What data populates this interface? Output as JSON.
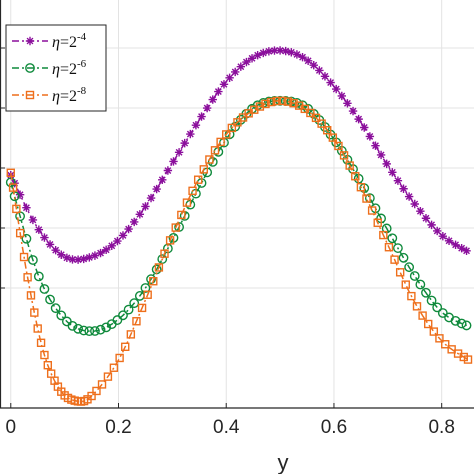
{
  "chart_data": {
    "type": "line",
    "title": "",
    "xlabel": "y",
    "ylabel": "",
    "xlim": [
      -0.02,
      0.86
    ],
    "ylim": [
      -0.5,
      1.2
    ],
    "grid": true,
    "legend_position": "top-left",
    "x_ticks": [
      {
        "value": 0.0,
        "label": "0"
      },
      {
        "value": 0.2,
        "label": "0.2"
      },
      {
        "value": 0.4,
        "label": "0.4"
      },
      {
        "value": 0.6,
        "label": "0.6"
      },
      {
        "value": 0.8,
        "label": "0.8"
      }
    ],
    "y_gridlines": [
      0.0,
      0.25,
      0.5,
      0.75,
      1.0
    ],
    "series": [
      {
        "legend_prefix": "η=2",
        "legend_exponent": "-4",
        "color": "#8b0f9c",
        "marker": "asterisk",
        "line_style": "dash-dot",
        "x": [
          0.0,
          0.05,
          0.1,
          0.15,
          0.2,
          0.25,
          0.3,
          0.35,
          0.4,
          0.45,
          0.5,
          0.55,
          0.6,
          0.65,
          0.7,
          0.75,
          0.8,
          0.85
        ],
        "values": [
          0.47,
          0.25,
          0.13,
          0.13,
          0.2,
          0.34,
          0.52,
          0.7,
          0.86,
          0.96,
          0.99,
          0.95,
          0.84,
          0.69,
          0.51,
          0.35,
          0.22,
          0.15
        ]
      },
      {
        "legend_prefix": "η=2",
        "legend_exponent": "-6",
        "color": "#0f8a3c",
        "marker": "circle",
        "line_style": "dash-dot",
        "x": [
          0.0,
          0.05,
          0.1,
          0.15,
          0.2,
          0.25,
          0.3,
          0.35,
          0.4,
          0.45,
          0.5,
          0.55,
          0.6,
          0.65,
          0.7,
          0.75,
          0.8,
          0.85
        ],
        "values": [
          0.44,
          0.06,
          -0.13,
          -0.18,
          -0.13,
          0.0,
          0.2,
          0.42,
          0.62,
          0.75,
          0.78,
          0.75,
          0.62,
          0.44,
          0.24,
          0.05,
          -0.1,
          -0.16
        ]
      },
      {
        "legend_prefix": "η=2",
        "legend_exponent": "-8",
        "color": "#ee6f1c",
        "marker": "square",
        "line_style": "dash-dot",
        "x": [
          0.0,
          0.03,
          0.06,
          0.09,
          0.12,
          0.15,
          0.2,
          0.25,
          0.3,
          0.35,
          0.4,
          0.45,
          0.5,
          0.55,
          0.6,
          0.65,
          0.7,
          0.75,
          0.8,
          0.85
        ],
        "values": [
          0.48,
          0.06,
          -0.26,
          -0.42,
          -0.47,
          -0.45,
          -0.3,
          -0.05,
          0.22,
          0.46,
          0.64,
          0.74,
          0.78,
          0.74,
          0.62,
          0.42,
          0.18,
          -0.06,
          -0.22,
          -0.3
        ]
      }
    ]
  }
}
